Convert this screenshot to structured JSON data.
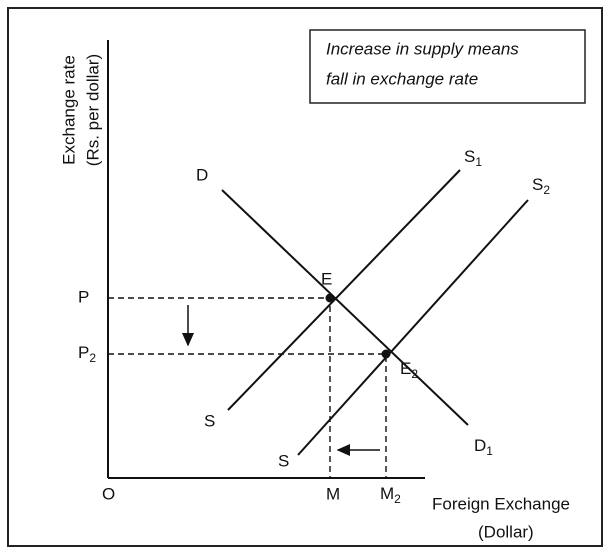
{
  "note": {
    "lines": [
      "Increase in supply means",
      "fall in exchange rate"
    ]
  },
  "y_axis": {
    "lines": [
      "Exchange rate",
      "(Rs. per dollar)"
    ]
  },
  "x_axis": {
    "lines": [
      "Foreign Exchange",
      "(Dollar)"
    ]
  },
  "labels": {
    "origin": "O",
    "p": "P",
    "p2": {
      "text": "P",
      "sub": "2"
    },
    "m": "M",
    "m2": {
      "text": "M",
      "sub": "2"
    },
    "d": "D",
    "d1": {
      "text": "D",
      "sub": "1"
    },
    "s1": {
      "text": "S",
      "sub": "1"
    },
    "s2": {
      "text": "S",
      "sub": "2"
    },
    "s_low1": "S",
    "s_low2": "S",
    "e": "E",
    "e2": {
      "text": "E",
      "sub": "2"
    }
  }
}
